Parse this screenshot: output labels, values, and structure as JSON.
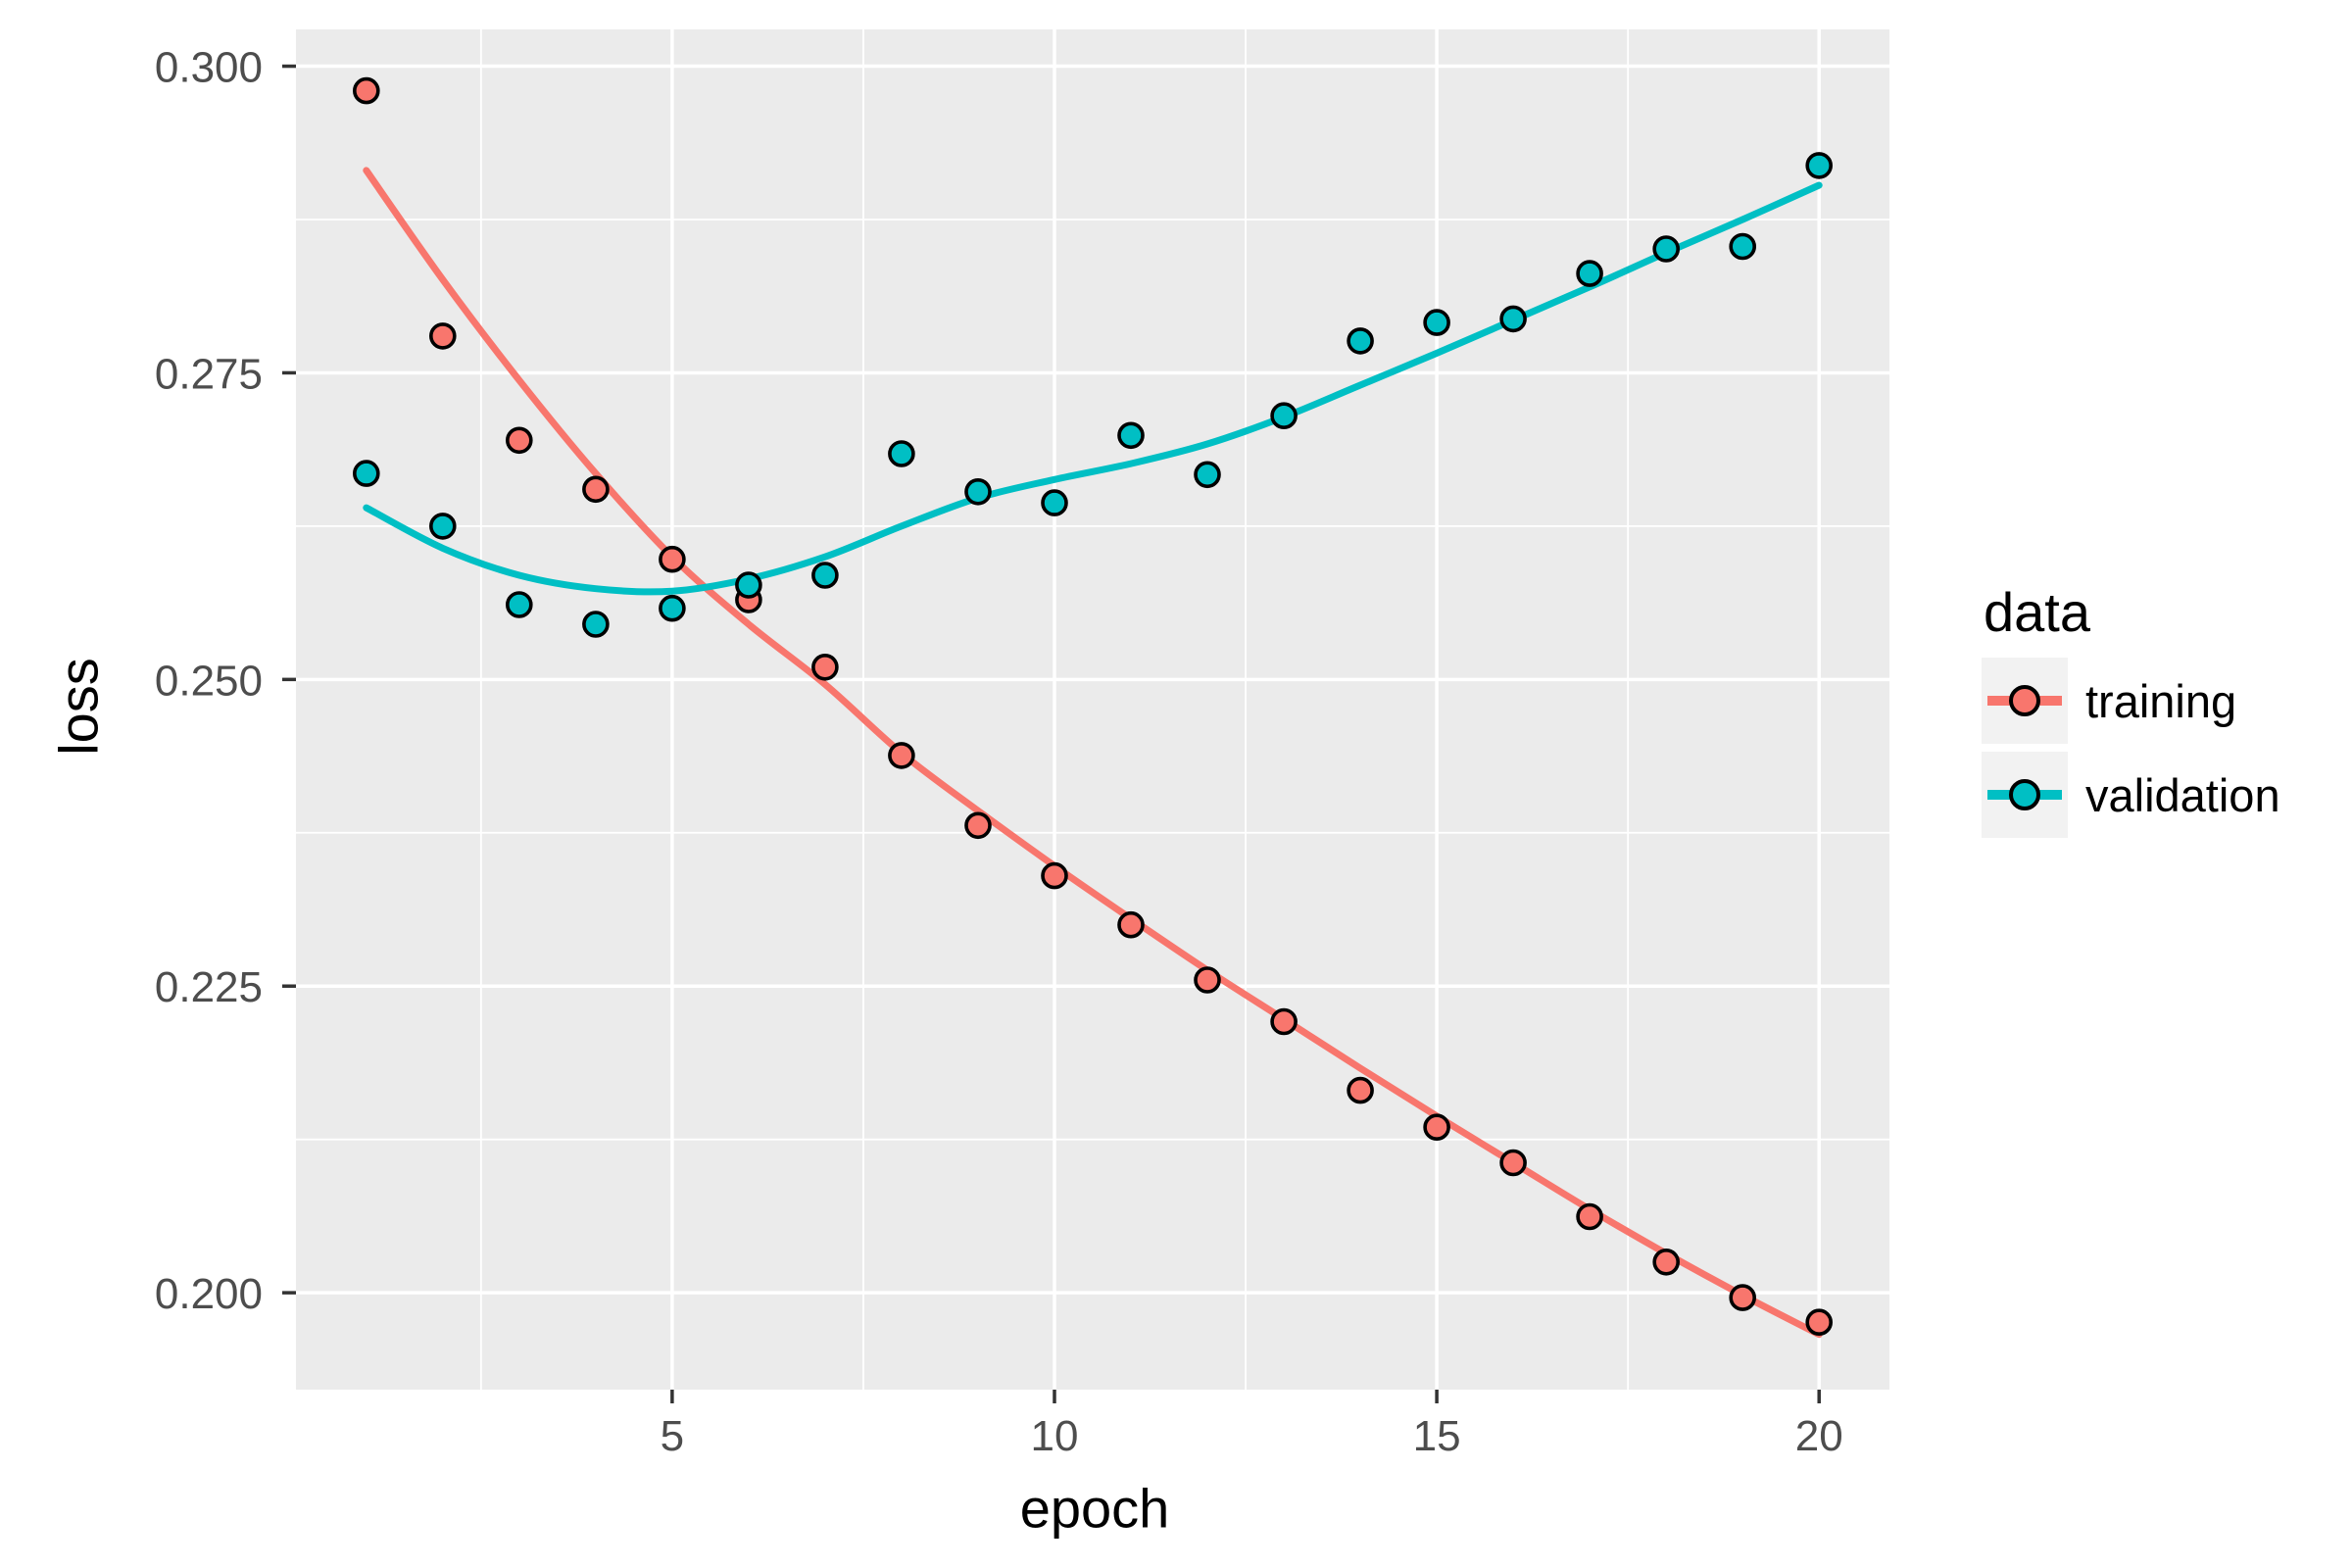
{
  "chart_data": {
    "type": "scatter",
    "title": "",
    "xlabel": "epoch",
    "ylabel": "loss",
    "x": [
      1,
      2,
      3,
      4,
      5,
      6,
      7,
      8,
      9,
      10,
      11,
      12,
      13,
      14,
      15,
      16,
      17,
      18,
      19,
      20
    ],
    "series": [
      {
        "name": "training",
        "color": "#F8766D",
        "values": [
          0.298,
          0.278,
          0.2695,
          0.2655,
          0.2598,
          0.2565,
          0.251,
          0.2438,
          0.2381,
          0.234,
          0.23,
          0.2255,
          0.2221,
          0.2165,
          0.2135,
          0.2106,
          0.2062,
          0.2025,
          0.1996,
          0.1976
        ],
        "smooth_values": [
          0.2915,
          0.2826,
          0.2744,
          0.2668,
          0.26,
          0.2545,
          0.2496,
          0.244,
          0.2393,
          0.2348,
          0.2305,
          0.2263,
          0.2223,
          0.2183,
          0.2144,
          0.2106,
          0.2068,
          0.2032,
          0.1998,
          0.1966
        ]
      },
      {
        "name": "validation",
        "color": "#00BFC4",
        "values": [
          0.2668,
          0.2625,
          0.2561,
          0.2545,
          0.2558,
          0.2577,
          0.2585,
          0.2684,
          0.2653,
          0.2644,
          0.2699,
          0.2667,
          0.2715,
          0.2776,
          0.2791,
          0.2794,
          0.2831,
          0.2851,
          0.2853,
          0.2919
        ],
        "smooth_values": [
          0.264,
          0.2607,
          0.2585,
          0.2574,
          0.2572,
          0.2582,
          0.26,
          0.2625,
          0.2648,
          0.2663,
          0.2676,
          0.2692,
          0.2714,
          0.274,
          0.2766,
          0.2793,
          0.282,
          0.2848,
          0.2875,
          0.2903
        ]
      }
    ],
    "xlim": [
      0.08,
      20.92
    ],
    "ylim": [
      0.1921,
      0.303
    ],
    "xticks": {
      "values": [
        5,
        10,
        15,
        20
      ],
      "labels": [
        "5",
        "10",
        "15",
        "20"
      ]
    },
    "yticks": {
      "values": [
        0.2,
        0.225,
        0.25,
        0.275,
        0.3
      ],
      "labels": [
        "0.200",
        "0.225",
        "0.250",
        "0.275",
        "0.300"
      ]
    },
    "xminor": [
      2.5,
      7.5,
      12.5,
      17.5
    ],
    "yminor": [
      0.2125,
      0.2375,
      0.2625,
      0.2875
    ],
    "grid": "on",
    "legend": {
      "title": "data",
      "position": "right",
      "items": [
        {
          "label": "training",
          "color": "#F8766D"
        },
        {
          "label": "validation",
          "color": "#00BFC4"
        }
      ]
    },
    "colors": {
      "panel_bg": "#EBEBEB",
      "grid": "#FFFFFF",
      "tick_mark": "#333333",
      "tick_label": "#4D4D4D",
      "point_stroke": "#000000",
      "legend_key_bg": "#F2F2F2"
    }
  }
}
